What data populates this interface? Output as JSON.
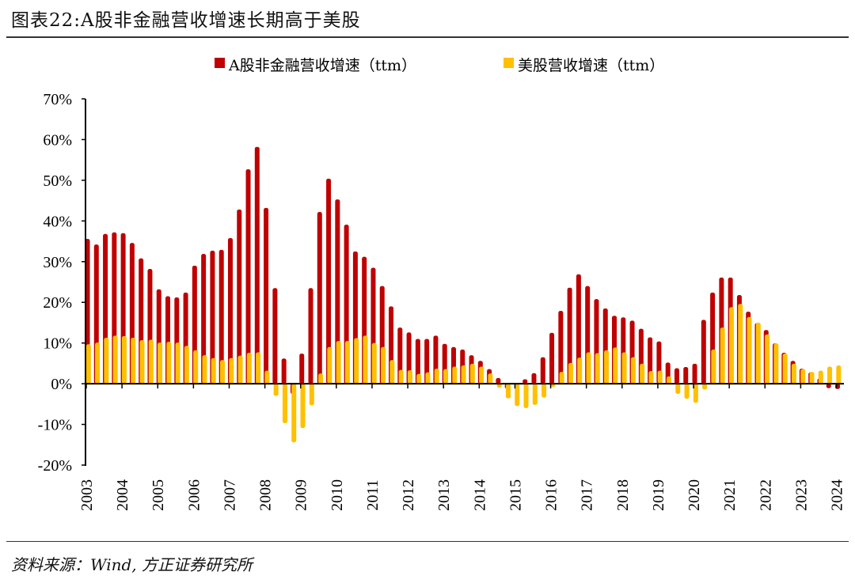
{
  "header": {
    "title": "图表22:A股非金融营收增速长期高于美股"
  },
  "footer": {
    "source": "资料来源：Wind, 方正证券研究所"
  },
  "chart_data": {
    "type": "bar",
    "title": "",
    "xlabel": "",
    "ylabel": "",
    "ylim": [
      -20,
      70
    ],
    "yticks": [
      "70%",
      "60%",
      "50%",
      "40%",
      "30%",
      "20%",
      "10%",
      "0%",
      "-10%",
      "-20%"
    ],
    "ytick_values": [
      70,
      60,
      50,
      40,
      30,
      20,
      10,
      0,
      -10,
      -20
    ],
    "year_labels": [
      "2003",
      "2004",
      "2005",
      "2006",
      "2007",
      "2008",
      "2009",
      "2010",
      "2011",
      "2012",
      "2013",
      "2014",
      "2015",
      "2016",
      "2017",
      "2018",
      "2019",
      "2020",
      "2021",
      "2022",
      "2023",
      "2024"
    ],
    "frequency": "quarterly, 2003Q1–2024Q1",
    "grid": false,
    "legend_position": "top",
    "colors": {
      "a_share": "#C00000",
      "us": "#FFC000"
    },
    "series": [
      {
        "name": "A股非金融营收增速（ttm）",
        "color": "#C00000",
        "values": [
          35.6,
          34.2,
          36.8,
          37.2,
          37.0,
          34.6,
          30.8,
          28.2,
          23.2,
          21.5,
          21.2,
          22.4,
          29.0,
          31.9,
          32.7,
          32.9,
          35.8,
          42.8,
          52.7,
          58.2,
          43.2,
          23.5,
          6.2,
          -2.5,
          7.4,
          23.5,
          42.2,
          50.4,
          45.3,
          39.1,
          32.5,
          31.2,
          28.5,
          24.0,
          19.0,
          13.8,
          12.6,
          11.0,
          11.0,
          11.8,
          9.8,
          9.0,
          8.4,
          7.0,
          5.6,
          3.6,
          1.4,
          -1.2,
          0.0,
          1.1,
          2.6,
          6.5,
          12.5,
          17.9,
          23.6,
          26.9,
          24.0,
          20.8,
          18.5,
          16.7,
          16.3,
          15.5,
          13.5,
          11.4,
          10.4,
          5.2,
          3.8,
          4.1,
          4.9,
          15.7,
          22.4,
          26.1,
          26.1,
          21.8,
          17.7,
          14.9,
          13.2,
          9.9,
          7.6,
          5.6,
          3.7,
          2.8,
          1.3,
          -1.1,
          -1.3
        ]
      },
      {
        "name": "美股营收增速（ttm）",
        "color": "#FFC000",
        "values": [
          9.7,
          10.1,
          11.3,
          11.8,
          11.7,
          11.3,
          10.7,
          10.8,
          10.1,
          10.3,
          10.1,
          9.3,
          8.2,
          7.0,
          6.3,
          5.8,
          6.3,
          6.9,
          7.6,
          7.7,
          3.2,
          -3.0,
          -9.7,
          -14.4,
          -10.9,
          -5.3,
          2.5,
          9.0,
          10.5,
          10.5,
          11.2,
          11.8,
          10.0,
          9.0,
          5.8,
          3.4,
          3.3,
          2.4,
          2.8,
          3.7,
          3.6,
          4.2,
          4.5,
          4.9,
          4.2,
          2.5,
          -1.0,
          -3.6,
          -5.5,
          -6.0,
          -5.2,
          -3.4,
          -0.8,
          2.9,
          5.1,
          6.4,
          7.7,
          7.5,
          8.2,
          8.9,
          7.7,
          6.5,
          4.9,
          3.1,
          3.2,
          1.8,
          -2.5,
          -3.7,
          -4.7,
          -1.4,
          8.4,
          13.8,
          18.8,
          19.6,
          16.4,
          15.0,
          12.1,
          9.9,
          7.4,
          4.9,
          3.6,
          2.9,
          3.2,
          4.2,
          4.5
        ]
      }
    ]
  }
}
